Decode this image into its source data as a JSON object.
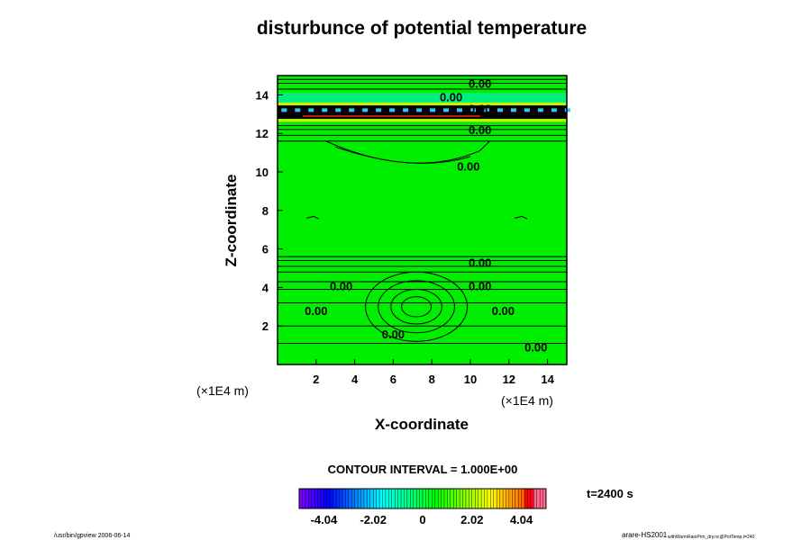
{
  "chart_data": {
    "type": "heatmap",
    "title": "disturbunce of potential temperature",
    "xlabel": "X-coordinate",
    "ylabel": "Z-coordinate",
    "x_unit": "(×1E4 m)",
    "y_unit": "(×1E4 m)",
    "xlim": [
      0,
      15
    ],
    "ylim": [
      0,
      15
    ],
    "xticks": [
      2,
      4,
      6,
      8,
      10,
      12,
      14
    ],
    "yticks": [
      2,
      4,
      6,
      8,
      10,
      12,
      14
    ],
    "contour_interval_text": "CONTOUR INTERVAL = 1.000E+00",
    "time_text": "t=2400 s",
    "colorbar": {
      "min": -5.05,
      "max": 5.05,
      "tick_labels": [
        "-4.04",
        "-2.02",
        "0",
        "2.02",
        "4.04"
      ],
      "tick_values": [
        -4.04,
        -2.02,
        0,
        2.02,
        4.04
      ]
    },
    "contour_labels": [
      {
        "text": "0.00",
        "x": 9.0,
        "z": 13.9
      },
      {
        "text": "0.00",
        "x": 10.5,
        "z": 14.6
      },
      {
        "text": "0.00",
        "x": 10.5,
        "z": 13.3
      },
      {
        "text": "0.00",
        "x": 10.5,
        "z": 12.2
      },
      {
        "text": "0.00",
        "x": 9.9,
        "z": 10.3
      },
      {
        "text": "0.00",
        "x": 10.5,
        "z": 5.3
      },
      {
        "text": "0.00",
        "x": 3.3,
        "z": 4.1
      },
      {
        "text": "0.00",
        "x": 10.5,
        "z": 4.1
      },
      {
        "text": "0.00",
        "x": 2.0,
        "z": 2.8
      },
      {
        "text": "0.00",
        "x": 11.7,
        "z": 2.8
      },
      {
        "text": "0.00",
        "x": 6.0,
        "z": 1.6
      },
      {
        "text": "0.00",
        "x": 13.4,
        "z": 0.9
      }
    ]
  },
  "footer": {
    "left": "/usr/bin/gpview 2006-06-14",
    "right_main": "arare-HS2001",
    "right_sub": "withWarmRainPrm_dry.nc@PotTemp,t=240"
  }
}
